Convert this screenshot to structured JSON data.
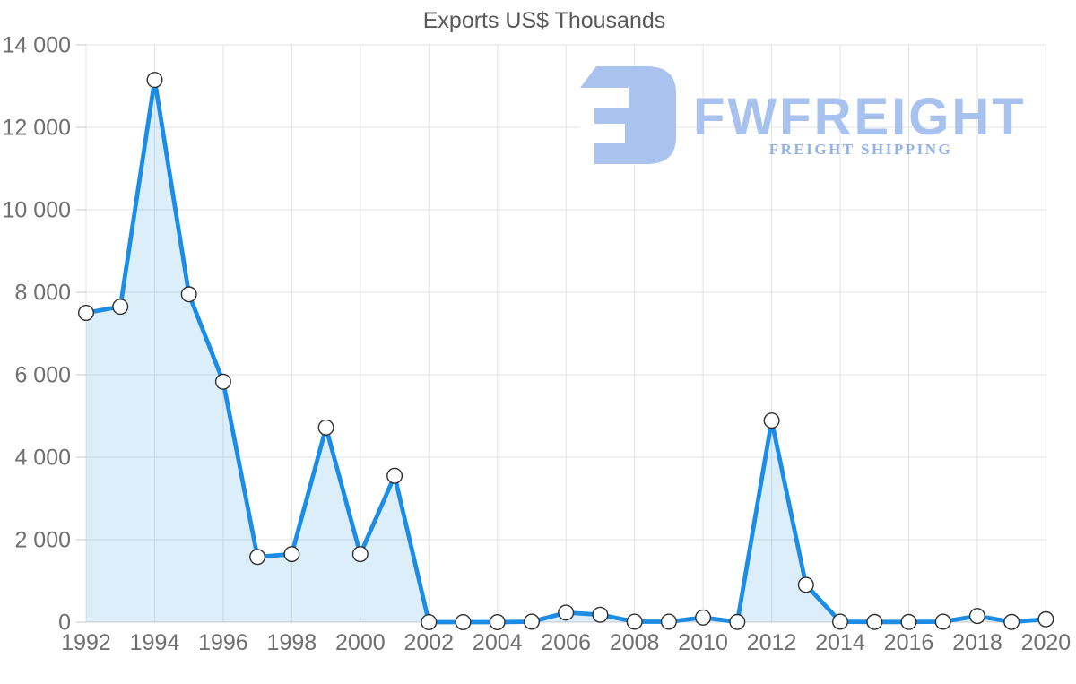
{
  "title": "Exports US$ Thousands",
  "watermark": {
    "brand": "FWFREIGHT",
    "tagline": "FREIGHT SHIPPING",
    "icon": "fw-logo-icon",
    "brand_color": "#a7c2ef",
    "tagline_color": "#92b2e8",
    "icon_color": "#a9c3ee"
  },
  "chart_data": {
    "type": "area",
    "title": "Exports US$ Thousands",
    "xlabel": "",
    "ylabel": "",
    "x": [
      1992,
      1993,
      1994,
      1995,
      1996,
      1997,
      1998,
      1999,
      2000,
      2001,
      2002,
      2003,
      2004,
      2005,
      2006,
      2007,
      2008,
      2009,
      2010,
      2011,
      2012,
      2013,
      2014,
      2015,
      2016,
      2017,
      2018,
      2019,
      2020
    ],
    "series": [
      {
        "name": "Exports US$ Thousands",
        "values": [
          7500,
          7650,
          13150,
          7950,
          5830,
          1580,
          1650,
          4720,
          1650,
          3550,
          0,
          0,
          0,
          10,
          230,
          180,
          10,
          10,
          110,
          5,
          4890,
          905,
          10,
          5,
          5,
          10,
          150,
          5,
          70
        ]
      }
    ],
    "ylim": [
      0,
      14000
    ],
    "y_ticks": [
      0,
      2000,
      4000,
      6000,
      8000,
      10000,
      12000,
      14000
    ],
    "y_tick_labels": [
      "0",
      "2 000",
      "4 000",
      "6 000",
      "8 000",
      "10 000",
      "12 000",
      "14 000"
    ],
    "x_tick_interval": 2,
    "x_tick_labels": [
      "1992",
      "1994",
      "1996",
      "1998",
      "2000",
      "2002",
      "2004",
      "2006",
      "2008",
      "2010",
      "2012",
      "2014",
      "2016",
      "2018",
      "2020"
    ],
    "grid": true,
    "legend": "none",
    "line_color": "#1b8de7",
    "fill_color": "rgba(27,141,231,0.15)",
    "grid_color": "#e3e3e3",
    "baseline_color": "#d2d2d2",
    "tick_color": "#c9c9c9",
    "axis_text_color": "#6f6f6f",
    "marker": {
      "fill": "#ffffff",
      "stroke": "#2f2f2f",
      "radius": 8.3
    }
  }
}
